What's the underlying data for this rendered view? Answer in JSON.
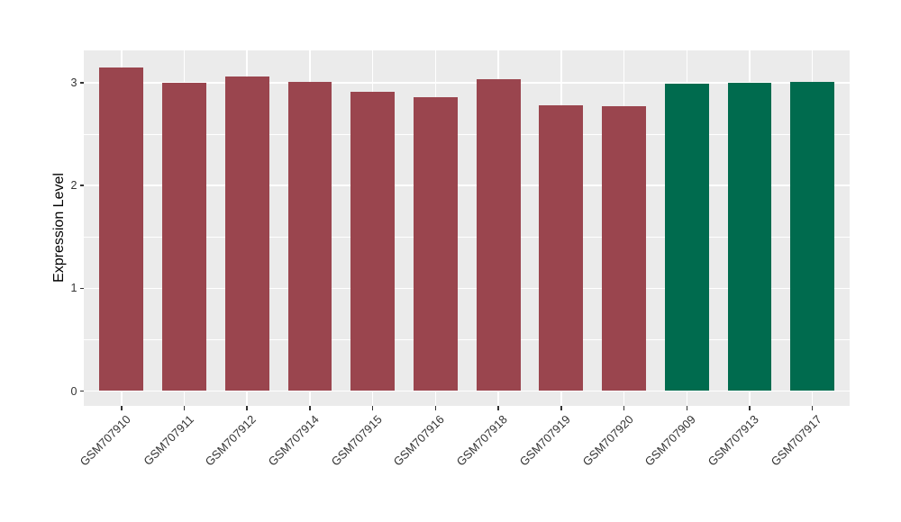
{
  "figure": {
    "background": "#FFFFFF",
    "panel_background": "#EBEBEB",
    "gridline_color": "#FFFFFF",
    "axis_text_color": "#333333",
    "axis_title_color": "#000000",
    "tick_mark_color": "#333333"
  },
  "chart_data": {
    "type": "bar",
    "title": "",
    "xlabel": "",
    "ylabel": "Expression Level",
    "categories": [
      "GSM707910",
      "GSM707911",
      "GSM707912",
      "GSM707914",
      "GSM707915",
      "GSM707916",
      "GSM707918",
      "GSM707919",
      "GSM707920",
      "GSM707909",
      "GSM707913",
      "GSM707917"
    ],
    "values": [
      3.15,
      3.0,
      3.06,
      3.01,
      2.91,
      2.86,
      3.03,
      2.78,
      2.77,
      2.99,
      3.0,
      3.01
    ],
    "bar_colors": [
      "#9A454E",
      "#9A454E",
      "#9A454E",
      "#9A454E",
      "#9A454E",
      "#9A454E",
      "#9A454E",
      "#9A454E",
      "#9A454E",
      "#006B4E",
      "#006B4E",
      "#006B4E"
    ],
    "group_colors": {
      "maroon": "#9A454E",
      "green": "#006B4E"
    },
    "y_ticks": [
      0,
      1,
      2,
      3
    ],
    "y_minor_ticks": [
      0.5,
      1.5,
      2.5
    ],
    "ylim": [
      -0.15,
      3.33
    ],
    "grid": true,
    "legend": false,
    "x_label_angle_deg": 45
  }
}
